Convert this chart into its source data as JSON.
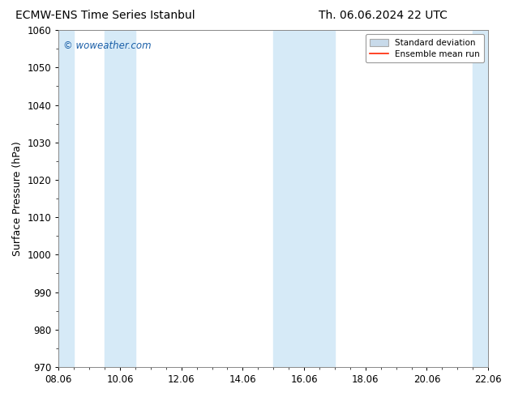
{
  "title_left": "ECMW-ENS Time Series Istanbul",
  "title_right": "Th. 06.06.2024 22 UTC",
  "ylabel": "Surface Pressure (hPa)",
  "ylim": [
    970,
    1060
  ],
  "yticks": [
    970,
    980,
    990,
    1000,
    1010,
    1020,
    1030,
    1040,
    1050,
    1060
  ],
  "xlim_min": 0.0,
  "xlim_max": 14.0,
  "xtick_positions": [
    0.0,
    2.0,
    4.0,
    6.0,
    8.0,
    10.0,
    12.0,
    14.0
  ],
  "xtick_labels": [
    "08.06",
    "10.06",
    "12.06",
    "14.06",
    "16.06",
    "18.06",
    "20.06",
    "22.06"
  ],
  "shaded_bands": [
    {
      "xmin": -0.5,
      "xmax": 0.5
    },
    {
      "xmin": 1.5,
      "xmax": 2.5
    },
    {
      "xmin": 7.0,
      "xmax": 9.0
    },
    {
      "xmin": 13.5,
      "xmax": 14.5
    }
  ],
  "shade_color": "#d6eaf7",
  "background_color": "#ffffff",
  "plot_bg_color": "#ffffff",
  "watermark": "© woweather.com",
  "watermark_color": "#1a5fa8",
  "legend_items": [
    {
      "label": "Standard deviation",
      "type": "box",
      "facecolor": "#c8daea",
      "edgecolor": "#aaaaaa"
    },
    {
      "label": "Ensemble mean run",
      "type": "line",
      "color": "#ff2200"
    }
  ],
  "figsize": [
    6.34,
    4.9
  ],
  "dpi": 100,
  "title_fontsize": 10,
  "ylabel_fontsize": 9,
  "tick_fontsize": 8.5,
  "watermark_fontsize": 8.5,
  "legend_fontsize": 7.5
}
